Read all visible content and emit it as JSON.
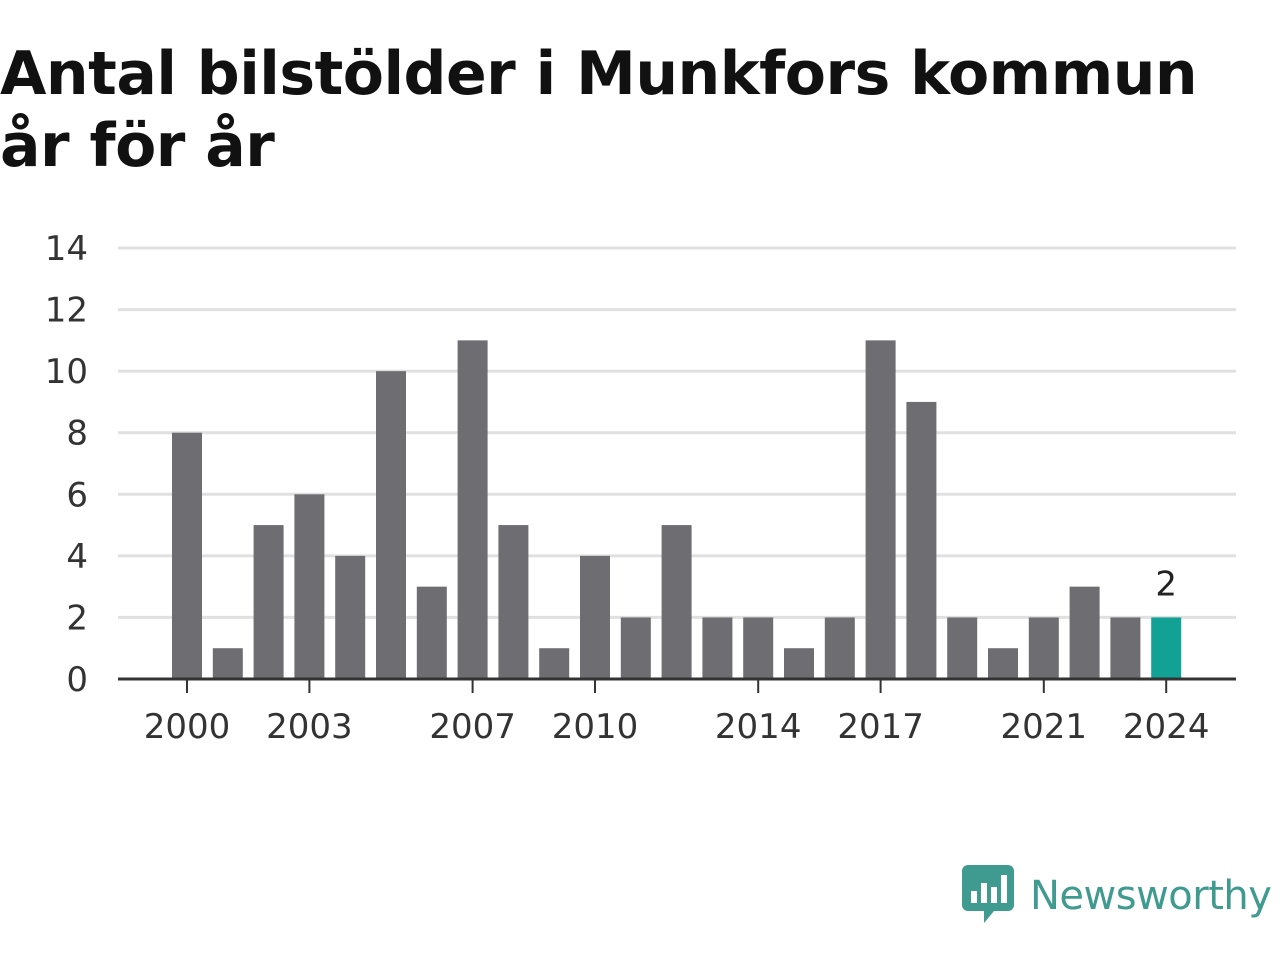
{
  "header": {
    "title": "Antal bilstölder i Munkfors kommun år för år"
  },
  "brand": {
    "name": "Newsworthy",
    "icon": "newsworthy-logo-icon",
    "color": "#3f9a90"
  },
  "colors": {
    "bar": "#6e6d72",
    "highlight": "#12a195",
    "grid": "#e0e0e0",
    "axis": "#333333"
  },
  "chart_data": {
    "type": "bar",
    "title": "Antal bilstölder i Munkfors kommun år för år",
    "categories": [
      "2000",
      "2001",
      "2002",
      "2003",
      "2004",
      "2005",
      "2006",
      "2007",
      "2008",
      "2009",
      "2010",
      "2011",
      "2012",
      "2013",
      "2014",
      "2015",
      "2016",
      "2017",
      "2018",
      "2019",
      "2020",
      "2021",
      "2022",
      "2023",
      "2024"
    ],
    "values": [
      8,
      1,
      5,
      6,
      4,
      10,
      3,
      11,
      5,
      1,
      4,
      2,
      5,
      2,
      2,
      1,
      2,
      11,
      9,
      2,
      1,
      2,
      3,
      2,
      2
    ],
    "x_tick_labels": [
      "2000",
      "2003",
      "2007",
      "2010",
      "2014",
      "2017",
      "2021",
      "2024"
    ],
    "y_ticks": [
      "0",
      "2",
      "4",
      "6",
      "8",
      "10",
      "12",
      "14"
    ],
    "ylim": [
      0,
      14
    ],
    "grid": true,
    "highlight_category": "2024",
    "highlight_label": "2",
    "xlabel": "",
    "ylabel": ""
  }
}
